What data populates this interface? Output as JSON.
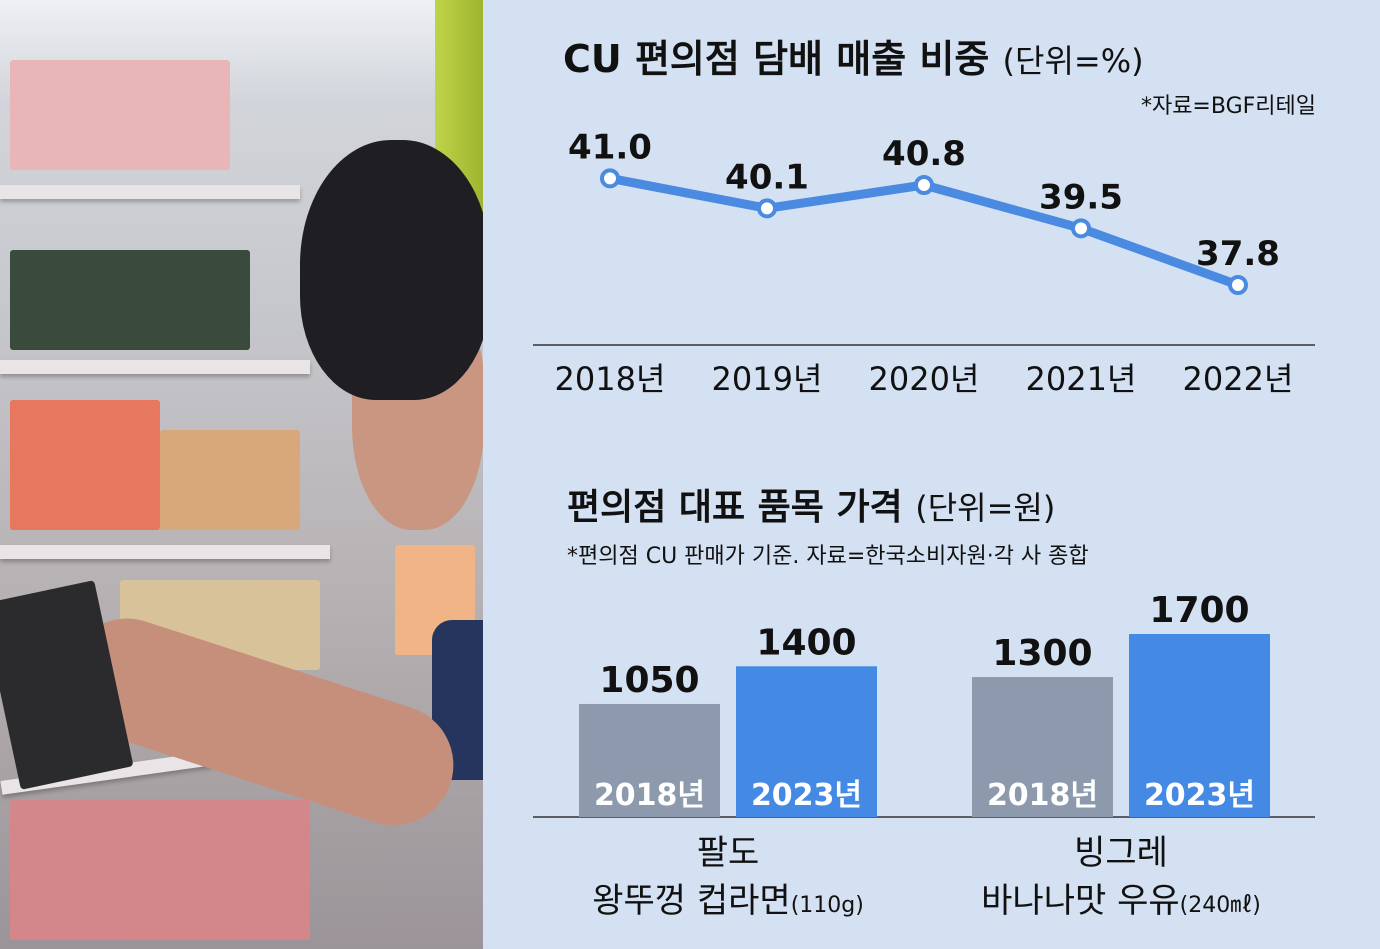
{
  "line_chart": {
    "title": "CU 편의점 담배 매출 비중",
    "unit": "(단위=%)",
    "source": "*자료=BGF리테일"
  },
  "bar_chart": {
    "title": "편의점 대표 품목 가격",
    "unit": "(단위=원)",
    "note": "*편의점 CU 판매가 기준. 자료=한국소비자원·각 사 종합",
    "groups": [
      {
        "label_line1": "팔도",
        "label_line2": "왕뚜껑 컵라면",
        "label_suffix": "(110g)"
      },
      {
        "label_line1": "빙그레",
        "label_line2": "바나나맛 우유",
        "label_suffix": "(240㎖)"
      }
    ]
  },
  "colors": {
    "panel_bg": "#d4e1f2",
    "line": "#4a8ae0",
    "bar_2018": "#8d9aae",
    "bar_2023": "#448ae5"
  },
  "chart_data": [
    {
      "type": "line",
      "title": "CU 편의점 담배 매출 비중",
      "categories": [
        "2018년",
        "2019년",
        "2020년",
        "2021년",
        "2022년"
      ],
      "series": [
        {
          "values": [
            41.0,
            40.1,
            40.8,
            39.5,
            37.8
          ]
        }
      ],
      "value_labels": [
        "41.0",
        "40.1",
        "40.8",
        "39.5",
        "37.8"
      ],
      "ylim": [
        36.0,
        42.0
      ],
      "grid": false
    },
    {
      "type": "bar",
      "title": "편의점 대표 품목 가격",
      "categories": [
        "팔도 왕뚜껑 컵라면(110g)",
        "빙그레 바나나맛 우유(240㎖)"
      ],
      "series": [
        {
          "name": "2018년",
          "values": [
            1050,
            1300
          ]
        },
        {
          "name": "2023년",
          "values": [
            1400,
            1700
          ]
        }
      ],
      "ylim": [
        0,
        1700
      ],
      "grid": false
    }
  ]
}
